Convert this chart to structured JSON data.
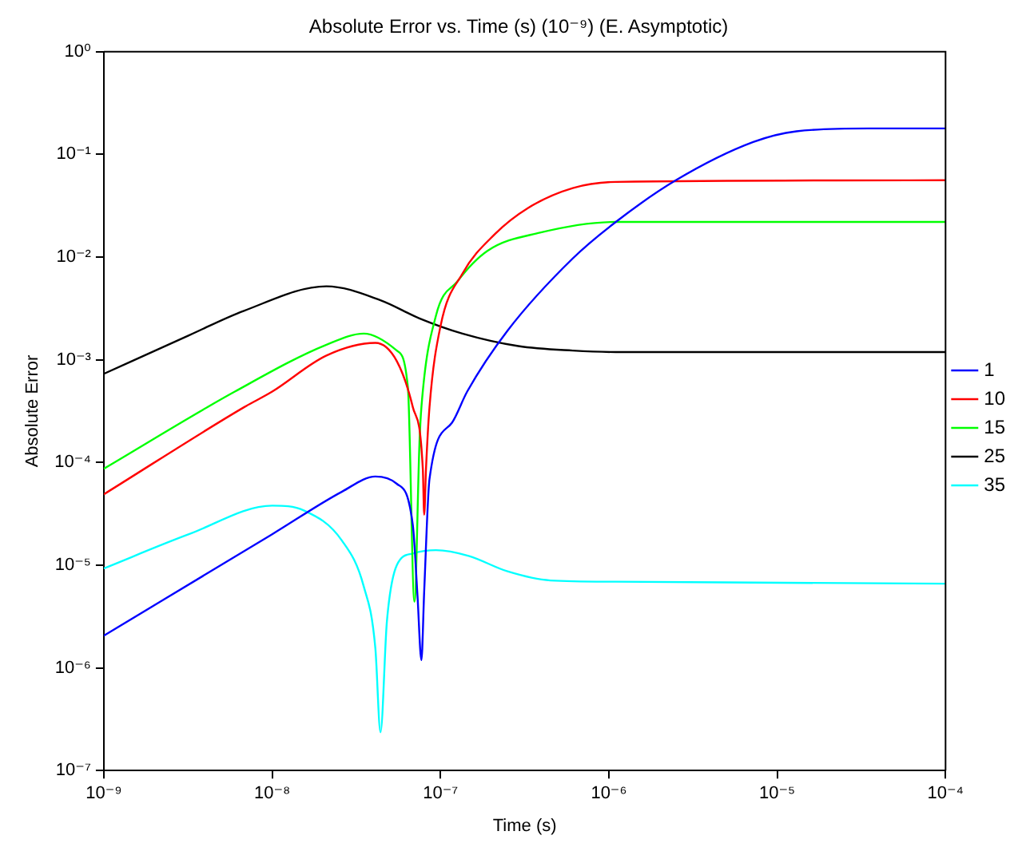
{
  "chart_data": {
    "type": "line",
    "title": "Absolute Error vs. Time (s) (10⁻⁹) (E. Asymptotic)",
    "xlabel": "Time (s)",
    "ylabel": "Absolute Error",
    "log": "xy",
    "grid": false,
    "legend": "right",
    "marker": "none",
    "line_style": "solid",
    "xlim": [
      1e-09,
      0.0001
    ],
    "ylim": [
      1e-07,
      1
    ],
    "xticks": [
      {
        "value": 1e-09,
        "label": "10⁻⁹"
      },
      {
        "value": 1e-08,
        "label": "10⁻⁸"
      },
      {
        "value": 1e-07,
        "label": "10⁻⁷"
      },
      {
        "value": 1e-06,
        "label": "10⁻⁶"
      },
      {
        "value": 1e-05,
        "label": "10⁻⁵"
      },
      {
        "value": 0.0001,
        "label": "10⁻⁴"
      }
    ],
    "yticks": [
      {
        "value": 1e-07,
        "label": "10⁻⁷"
      },
      {
        "value": 1e-06,
        "label": "10⁻⁶"
      },
      {
        "value": 1e-05,
        "label": "10⁻⁵"
      },
      {
        "value": 0.0001,
        "label": "10⁻⁴"
      },
      {
        "value": 0.001,
        "label": "10⁻³"
      },
      {
        "value": 0.01,
        "label": "10⁻²"
      },
      {
        "value": 0.1,
        "label": "10⁻¹"
      },
      {
        "value": 1,
        "label": "10⁰"
      }
    ],
    "series": [
      {
        "name": "1",
        "color": "#0000ff",
        "x": [
          1e-09,
          1e-08,
          2.6e-08,
          4.1e-08,
          5.5e-08,
          6.85e-08,
          7.3e-08,
          7.7e-08,
          8e-08,
          8.6e-08,
          1.17e-07,
          1.44e-07,
          2.5e-07,
          6.1e-07,
          1.1e-06,
          2.5e-06,
          7.2e-06,
          1.3e-05,
          3.5e-05,
          0.0001
        ],
        "values": [
          2.06e-06,
          2e-05,
          5.2e-05,
          7.3e-05,
          6.2e-05,
          2.44e-05,
          5e-06,
          1.19e-06,
          5.6e-06,
          6.9e-05,
          0.000244,
          0.00049,
          0.00192,
          0.0097,
          0.022,
          0.056,
          0.132,
          0.168,
          0.179,
          0.179
        ]
      },
      {
        "name": "10",
        "color": "#ff0000",
        "x": [
          1e-09,
          6.8e-09,
          1e-08,
          2.1e-08,
          4.1e-08,
          5.5e-08,
          6.85e-08,
          7.85e-08,
          8e-08,
          8.2e-08,
          8.6e-08,
          1e-07,
          1.35e-07,
          2.1e-07,
          3.3e-07,
          6.1e-07,
          1.1e-06,
          0.0001
        ],
        "values": [
          4.9e-05,
          0.000345,
          0.00049,
          0.0011,
          0.00146,
          0.00097,
          0.000345,
          8.7e-05,
          3.1e-05,
          8.7e-05,
          0.000345,
          0.00213,
          0.0069,
          0.0167,
          0.03,
          0.047,
          0.054,
          0.056
        ]
      },
      {
        "name": "15",
        "color": "#00ff00",
        "x": [
          1e-09,
          6e-09,
          2.1e-08,
          3.5e-08,
          5.5e-08,
          6.4e-08,
          7e-08,
          7.5e-08,
          7.7e-08,
          9.4e-08,
          1.26e-07,
          1.9e-07,
          3.9e-07,
          1.1e-06,
          0.0001
        ],
        "values": [
          8.7e-05,
          0.00049,
          0.0014,
          0.0018,
          0.00123,
          0.00054,
          4.4e-06,
          0.000156,
          0.000345,
          0.0027,
          0.0058,
          0.0115,
          0.0173,
          0.022,
          0.022
        ]
      },
      {
        "name": "25",
        "color": "#000000",
        "x": [
          1e-09,
          3.2e-09,
          6.8e-09,
          2.1e-08,
          4.4e-08,
          7.5e-08,
          1.35e-07,
          2.9e-07,
          6.1e-07,
          1.1e-06,
          0.0001
        ],
        "values": [
          0.00073,
          0.00173,
          0.003,
          0.0052,
          0.0038,
          0.00253,
          0.0018,
          0.00136,
          0.00123,
          0.00119,
          0.00119
        ]
      },
      {
        "name": "35",
        "color": "#00ffff",
        "x": [
          1e-09,
          3.2e-09,
          1e-08,
          1.55e-08,
          2.6e-08,
          3.5e-08,
          4.1e-08,
          4.4e-08,
          4.8e-08,
          5.5e-08,
          6.85e-08,
          9.4e-08,
          1.47e-07,
          2.5e-07,
          4.5e-07,
          1.1e-06,
          0.0001
        ],
        "values": [
          9.3e-06,
          2e-05,
          3.8e-05,
          3.4e-05,
          1.73e-05,
          6.2e-06,
          1.56e-06,
          2.36e-07,
          2.8e-06,
          1e-05,
          1.3e-05,
          1.4e-05,
          1.23e-05,
          8.7e-06,
          7.1e-06,
          6.9e-06,
          6.6e-06
        ]
      }
    ]
  }
}
